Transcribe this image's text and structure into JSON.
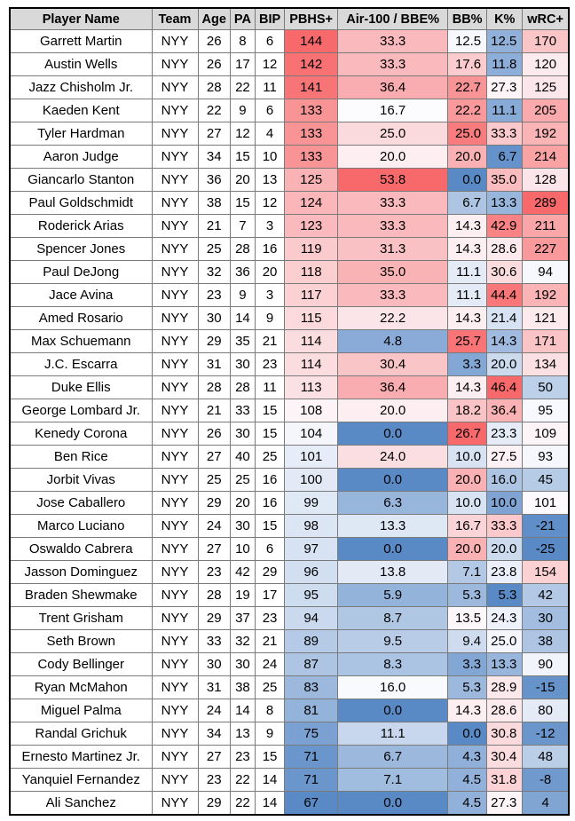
{
  "table": {
    "headers": [
      "Player Name",
      "Team",
      "Age",
      "PA",
      "BIP",
      "PBHS+",
      "Air-100 / BBE%",
      "BB%",
      "K%",
      "wRC+"
    ],
    "rows": [
      [
        "Garrett Martin",
        "NYY",
        "26",
        "8",
        "6",
        "144",
        "33.3",
        "12.5",
        "12.5",
        "170"
      ],
      [
        "Austin Wells",
        "NYY",
        "26",
        "17",
        "12",
        "142",
        "33.3",
        "17.6",
        "11.8",
        "120"
      ],
      [
        "Jazz Chisholm Jr.",
        "NYY",
        "28",
        "22",
        "11",
        "141",
        "36.4",
        "22.7",
        "27.3",
        "125"
      ],
      [
        "Kaeden Kent",
        "NYY",
        "22",
        "9",
        "6",
        "133",
        "16.7",
        "22.2",
        "11.1",
        "205"
      ],
      [
        "Tyler Hardman",
        "NYY",
        "27",
        "12",
        "4",
        "133",
        "25.0",
        "25.0",
        "33.3",
        "192"
      ],
      [
        "Aaron Judge",
        "NYY",
        "34",
        "15",
        "10",
        "133",
        "20.0",
        "20.0",
        "6.7",
        "214"
      ],
      [
        "Giancarlo Stanton",
        "NYY",
        "36",
        "20",
        "13",
        "125",
        "53.8",
        "0.0",
        "35.0",
        "128"
      ],
      [
        "Paul Goldschmidt",
        "NYY",
        "38",
        "15",
        "12",
        "124",
        "33.3",
        "6.7",
        "13.3",
        "289"
      ],
      [
        "Roderick Arias",
        "NYY",
        "21",
        "7",
        "3",
        "123",
        "33.3",
        "14.3",
        "42.9",
        "211"
      ],
      [
        "Spencer Jones",
        "NYY",
        "25",
        "28",
        "16",
        "119",
        "31.3",
        "14.3",
        "28.6",
        "227"
      ],
      [
        "Paul DeJong",
        "NYY",
        "32",
        "36",
        "20",
        "118",
        "35.0",
        "11.1",
        "30.6",
        "94"
      ],
      [
        "Jace Avina",
        "NYY",
        "23",
        "9",
        "3",
        "117",
        "33.3",
        "11.1",
        "44.4",
        "192"
      ],
      [
        "Amed Rosario",
        "NYY",
        "30",
        "14",
        "9",
        "115",
        "22.2",
        "14.3",
        "21.4",
        "121"
      ],
      [
        "Max Schuemann",
        "NYY",
        "29",
        "35",
        "21",
        "114",
        "4.8",
        "25.7",
        "14.3",
        "171"
      ],
      [
        "J.C. Escarra",
        "NYY",
        "31",
        "30",
        "23",
        "114",
        "30.4",
        "3.3",
        "20.0",
        "134"
      ],
      [
        "Duke Ellis",
        "NYY",
        "28",
        "28",
        "11",
        "113",
        "36.4",
        "14.3",
        "46.4",
        "50"
      ],
      [
        "George Lombard Jr.",
        "NYY",
        "21",
        "33",
        "15",
        "108",
        "20.0",
        "18.2",
        "36.4",
        "95"
      ],
      [
        "Kenedy Corona",
        "NYY",
        "26",
        "30",
        "15",
        "104",
        "0.0",
        "26.7",
        "23.3",
        "109"
      ],
      [
        "Ben Rice",
        "NYY",
        "27",
        "40",
        "25",
        "101",
        "24.0",
        "10.0",
        "27.5",
        "93"
      ],
      [
        "Jorbit Vivas",
        "NYY",
        "25",
        "25",
        "16",
        "100",
        "0.0",
        "20.0",
        "16.0",
        "45"
      ],
      [
        "Jose Caballero",
        "NYY",
        "29",
        "20",
        "16",
        "99",
        "6.3",
        "10.0",
        "10.0",
        "101"
      ],
      [
        "Marco Luciano",
        "NYY",
        "24",
        "30",
        "15",
        "98",
        "13.3",
        "16.7",
        "33.3",
        "-21"
      ],
      [
        "Oswaldo Cabrera",
        "NYY",
        "27",
        "10",
        "6",
        "97",
        "0.0",
        "20.0",
        "20.0",
        "-25"
      ],
      [
        "Jasson Dominguez",
        "NYY",
        "23",
        "42",
        "29",
        "96",
        "13.8",
        "7.1",
        "23.8",
        "154"
      ],
      [
        "Braden Shewmake",
        "NYY",
        "28",
        "19",
        "17",
        "95",
        "5.9",
        "5.3",
        "5.3",
        "42"
      ],
      [
        "Trent Grisham",
        "NYY",
        "29",
        "37",
        "23",
        "94",
        "8.7",
        "13.5",
        "24.3",
        "30"
      ],
      [
        "Seth Brown",
        "NYY",
        "33",
        "32",
        "21",
        "89",
        "9.5",
        "9.4",
        "25.0",
        "38"
      ],
      [
        "Cody Bellinger",
        "NYY",
        "30",
        "30",
        "24",
        "87",
        "8.3",
        "3.3",
        "13.3",
        "90"
      ],
      [
        "Ryan McMahon",
        "NYY",
        "31",
        "38",
        "25",
        "83",
        "16.0",
        "5.3",
        "28.9",
        "-15"
      ],
      [
        "Miguel Palma",
        "NYY",
        "24",
        "14",
        "8",
        "81",
        "0.0",
        "14.3",
        "28.6",
        "80"
      ],
      [
        "Randal Grichuk",
        "NYY",
        "34",
        "13",
        "9",
        "75",
        "11.1",
        "0.0",
        "30.8",
        "-12"
      ],
      [
        "Ernesto Martinez Jr.",
        "NYY",
        "27",
        "23",
        "15",
        "71",
        "6.7",
        "4.3",
        "30.4",
        "48"
      ],
      [
        "Yanquiel Fernandez",
        "NYY",
        "23",
        "22",
        "14",
        "71",
        "7.1",
        "4.5",
        "31.8",
        "-8"
      ],
      [
        "Ali Sanchez",
        "NYY",
        "29",
        "22",
        "14",
        "67",
        "0.0",
        "4.5",
        "27.3",
        "4"
      ]
    ],
    "colors": {
      "header_bg": "#d9d9d9",
      "high_red": "#f8696b",
      "mid_white": "#fcfcff",
      "low_blue": "#5a8ac6"
    }
  }
}
